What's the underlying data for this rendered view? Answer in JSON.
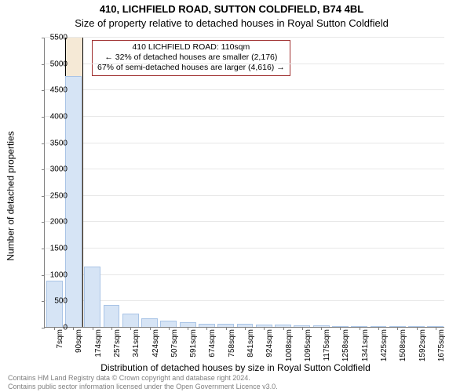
{
  "titles": {
    "line1": "410, LICHFIELD ROAD, SUTTON COLDFIELD, B74 4BL",
    "line2": "Size of property relative to detached houses in Royal Sutton Coldfield"
  },
  "chart": {
    "type": "histogram",
    "background_color": "#ffffff",
    "grid_color": "#e8e8e8",
    "axis_color": "#808080",
    "bar_color": "#d6e4f5",
    "bar_border_color": "#a9c4e6",
    "highlight_fill": "#f5e9d6",
    "highlight_border": "#000000",
    "bar_width": 0.86,
    "label_fontsize": 12,
    "tick_fontsize": 10,
    "ylabel": "Number of detached properties",
    "xlabel": "Distribution of detached houses by size in Royal Sutton Coldfield",
    "ylim": [
      0,
      5500
    ],
    "ytick_step": 500,
    "categories": [
      "7sqm",
      "90sqm",
      "174sqm",
      "257sqm",
      "341sqm",
      "424sqm",
      "507sqm",
      "591sqm",
      "674sqm",
      "758sqm",
      "841sqm",
      "924sqm",
      "1008sqm",
      "1095sqm",
      "1175sqm",
      "1258sqm",
      "1341sqm",
      "1425sqm",
      "1508sqm",
      "1592sqm",
      "1675sqm"
    ],
    "values": [
      870,
      4750,
      1150,
      420,
      260,
      170,
      120,
      90,
      60,
      55,
      55,
      45,
      40,
      35,
      25,
      20,
      15,
      10,
      8,
      6,
      5
    ],
    "highlight_index": 1
  },
  "legend": {
    "border_color": "#a03030",
    "line1": "410 LICHFIELD ROAD: 110sqm",
    "line2": "← 32% of detached houses are smaller (2,176)",
    "line3": "67% of semi-detached houses are larger (4,616) →"
  },
  "footer": {
    "line1": "Contains HM Land Registry data © Crown copyright and database right 2024.",
    "line2": "Contains public sector information licensed under the Open Government Licence v3.0.",
    "color": "#808080"
  }
}
